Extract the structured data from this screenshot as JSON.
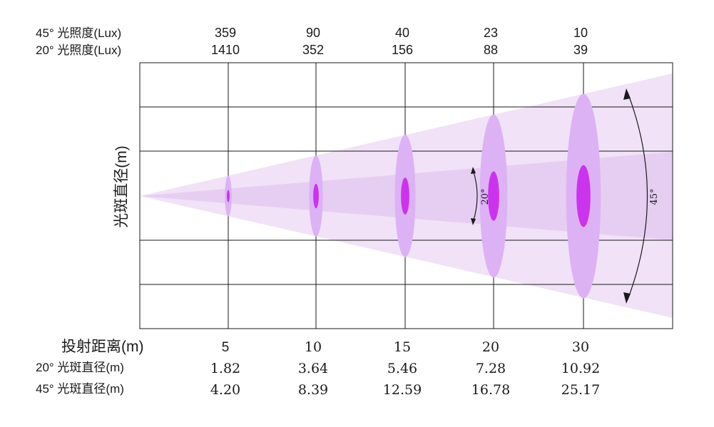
{
  "header": {
    "lux45_label": "45° 光照度(Lux)",
    "lux20_label": "20° 光照度(Lux)"
  },
  "axis": {
    "y_title": "光斑直径(m)",
    "distance_label": "投射距离(m)",
    "dia20_label": "20° 光斑直径(m)",
    "dia45_label": "45° 光斑直径(m)"
  },
  "beam": {
    "angle_narrow_label": "20°",
    "angle_wide_label": "45°"
  },
  "colors": {
    "wide_beam": "#f1e2f7",
    "narrow_beam": "#e6cef2",
    "wide_spot": "#dcb2f5",
    "narrow_spot": "#cc33ee",
    "grid": "#1a1a1a"
  },
  "chart_data": {
    "type": "table",
    "columns": [
      {
        "distance": "5",
        "lux45": "359",
        "lux20": "1410",
        "dia20": "1.82",
        "dia45": "4.20"
      },
      {
        "distance": "10",
        "lux45": "90",
        "lux20": "352",
        "dia20": "3.64",
        "dia45": "8.39"
      },
      {
        "distance": "15",
        "lux45": "40",
        "lux20": "156",
        "dia20": "5.46",
        "dia45": "12.59"
      },
      {
        "distance": "20",
        "lux45": "23",
        "lux20": "88",
        "dia20": "7.28",
        "dia45": "16.78"
      },
      {
        "distance": "30",
        "lux45": "10",
        "lux20": "39",
        "dia20": "10.92",
        "dia45": "25.17"
      }
    ]
  }
}
